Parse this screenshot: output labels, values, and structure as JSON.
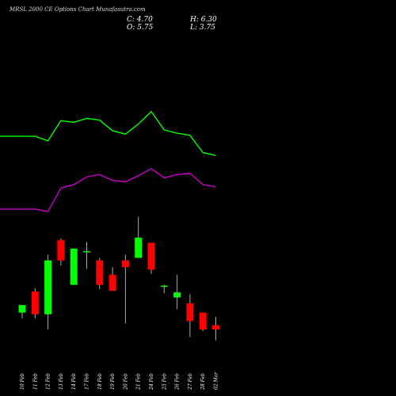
{
  "title": "MRSL 2000  CE Options  Chart Munafasutra.com",
  "ohlc": {
    "c": "C: 4.70",
    "h": "H: 6.30",
    "o": "O: 5.75",
    "l": "L: 3.75"
  },
  "colors": {
    "background": "#000000",
    "up": "#00ff00",
    "down": "#ff0000",
    "upper_band": "#00ff00",
    "lower_band": "#cc00cc",
    "wick": "#aaaaaa"
  },
  "chart_data": {
    "type": "candlestick",
    "categories": [
      "10 Feb",
      "11 Feb",
      "12 Feb",
      "13 Feb",
      "14 Feb",
      "17 Feb",
      "18 Feb",
      "19 Feb",
      "20 Feb",
      "21 Feb",
      "24 Feb",
      "25 Feb",
      "26 Feb",
      "27 Feb",
      "28 Feb",
      "02 Mar"
    ],
    "candles": [
      {
        "o": 5.2,
        "h": 5.65,
        "l": 4.85,
        "c": 5.65
      },
      {
        "o": 6.45,
        "h": 6.65,
        "l": 4.85,
        "c": 5.1
      },
      {
        "o": 5.1,
        "h": 8.65,
        "l": 4.2,
        "c": 8.3
      },
      {
        "o": 9.5,
        "h": 9.6,
        "l": 8.0,
        "c": 8.3
      },
      {
        "o": 6.85,
        "h": 9.0,
        "l": 6.85,
        "c": 9.0
      },
      {
        "o": 8.85,
        "h": 9.4,
        "l": 7.8,
        "c": 8.85
      },
      {
        "o": 8.3,
        "h": 8.45,
        "l": 6.6,
        "c": 6.85
      },
      {
        "o": 7.45,
        "h": 7.9,
        "l": 6.5,
        "c": 6.5
      },
      {
        "o": 8.3,
        "h": 8.65,
        "l": 4.55,
        "c": 7.9
      },
      {
        "o": 8.45,
        "h": 10.9,
        "l": 8.45,
        "c": 9.65
      },
      {
        "o": 9.35,
        "h": 9.35,
        "l": 7.5,
        "c": 7.75
      },
      {
        "o": 6.8,
        "h": 6.85,
        "l": 6.35,
        "c": 6.8
      },
      {
        "o": 6.1,
        "h": 7.45,
        "l": 5.4,
        "c": 6.4
      },
      {
        "o": 5.75,
        "h": 6.3,
        "l": 3.75,
        "c": 4.7
      },
      {
        "o": 5.2,
        "h": 5.2,
        "l": 4.1,
        "c": 4.2
      },
      {
        "o": 4.45,
        "h": 4.95,
        "l": 3.55,
        "c": 4.2
      }
    ],
    "upper_band": [
      15.67,
      15.67,
      15.4,
      16.6,
      16.5,
      16.73,
      16.63,
      16.0,
      15.8,
      16.4,
      17.13,
      16.05,
      15.85,
      15.73,
      14.7,
      14.53
    ],
    "lower_band": [
      11.34,
      11.34,
      11.2,
      12.6,
      12.8,
      13.25,
      13.4,
      13.05,
      12.97,
      13.33,
      13.75,
      13.2,
      13.4,
      13.47,
      12.8,
      12.67
    ],
    "ylim": [
      2.6,
      20.0
    ]
  }
}
